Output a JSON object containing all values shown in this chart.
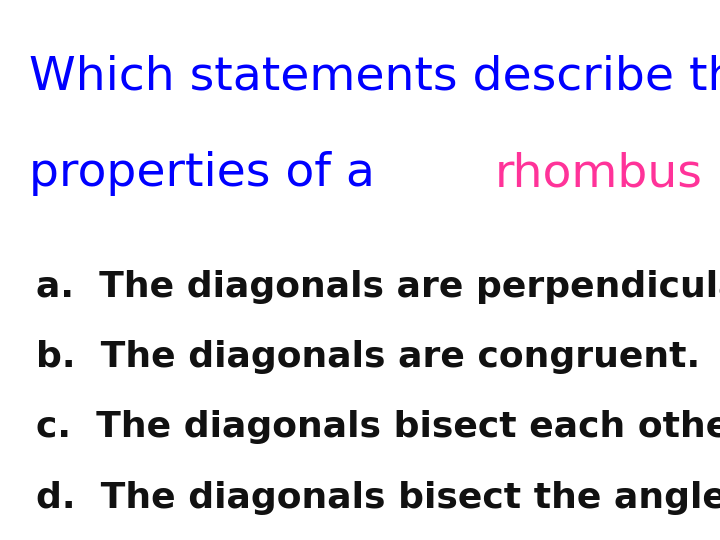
{
  "background_color": "#ffffff",
  "title_line1": "Which statements describe the",
  "title_line2_part1": "properties of a ",
  "title_line2_highlight": "rhombus",
  "title_line2_part2": "?",
  "title_color": "#0000ff",
  "highlight_color": "#ff3399",
  "title_fontsize": 34,
  "options": [
    "a.  The diagonals are perpendicular.",
    "b.  The diagonals are congruent.",
    "c.  The diagonals bisect each other.",
    "d.  The diagonals bisect the angles."
  ],
  "option_color": "#111111",
  "option_fontsize": 26,
  "fig_width": 7.2,
  "fig_height": 5.4,
  "fig_dpi": 100
}
